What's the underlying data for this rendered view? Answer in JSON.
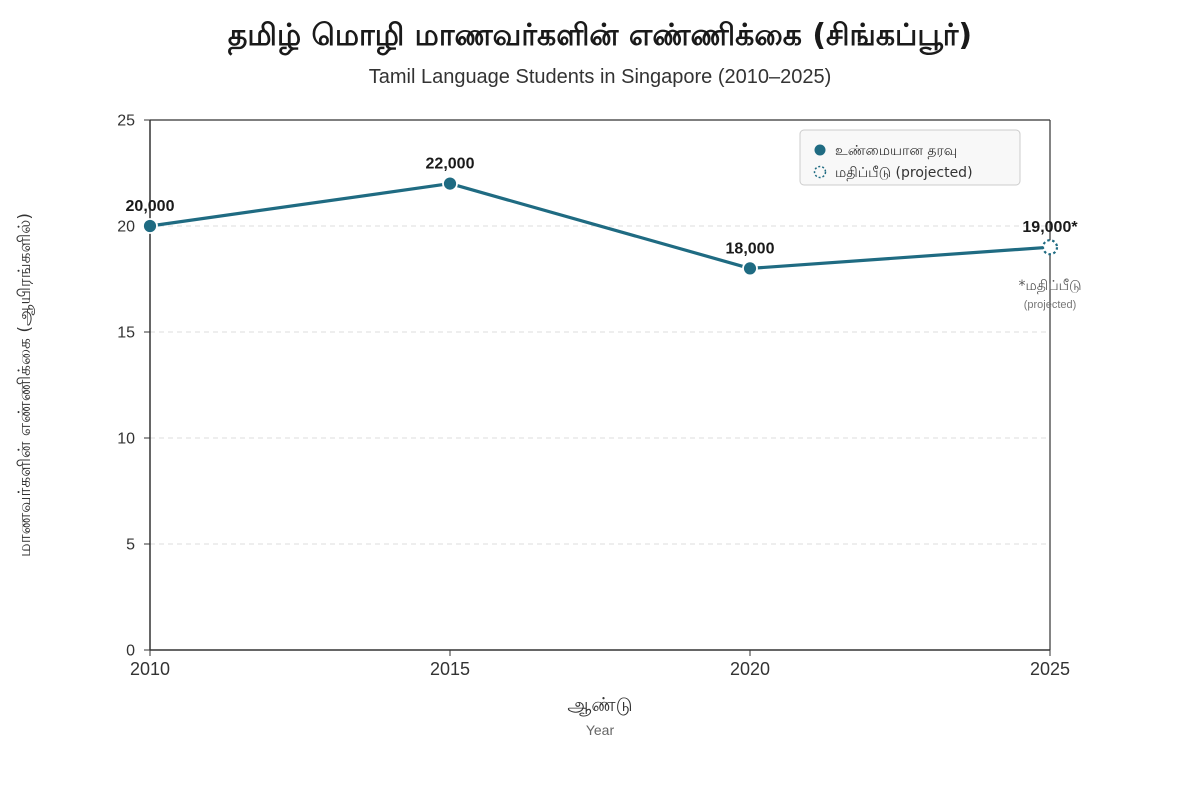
{
  "chart_data": {
    "type": "line",
    "title": "தமிழ் மொழி மாணவர்களின் எண்ணிக்கை (சிங்கப்பூர்)",
    "subtitle": "Tamil Language Students in Singapore (2010–2025)",
    "xlabel": "ஆண்டு",
    "xlabel_sub": "Year",
    "ylabel": "மாணவர்களின் எண்ணிக்கை (ஆயிரங்களில்)",
    "x": [
      2010,
      2015,
      2020,
      2025
    ],
    "xlim": [
      2010,
      2025
    ],
    "ylim": [
      0,
      25
    ],
    "yticks": [
      0,
      5,
      10,
      15,
      20,
      25
    ],
    "grid": true,
    "legend_position": "top-right",
    "color": "#1f6b82",
    "series": [
      {
        "values": [
          20,
          22,
          18,
          19
        ],
        "projected": [
          false,
          false,
          false,
          true
        ],
        "data_labels": [
          "20,000",
          "22,000",
          "18,000",
          "19,000*"
        ]
      }
    ],
    "legend": [
      {
        "label": "உண்மையான தரவு",
        "marker": "filled-circle"
      },
      {
        "label": "மதிப்பீடு (projected)",
        "marker": "dashed-circle"
      }
    ],
    "annotation": {
      "line1": "*மதிப்பீடு",
      "line2": "(projected)"
    }
  }
}
